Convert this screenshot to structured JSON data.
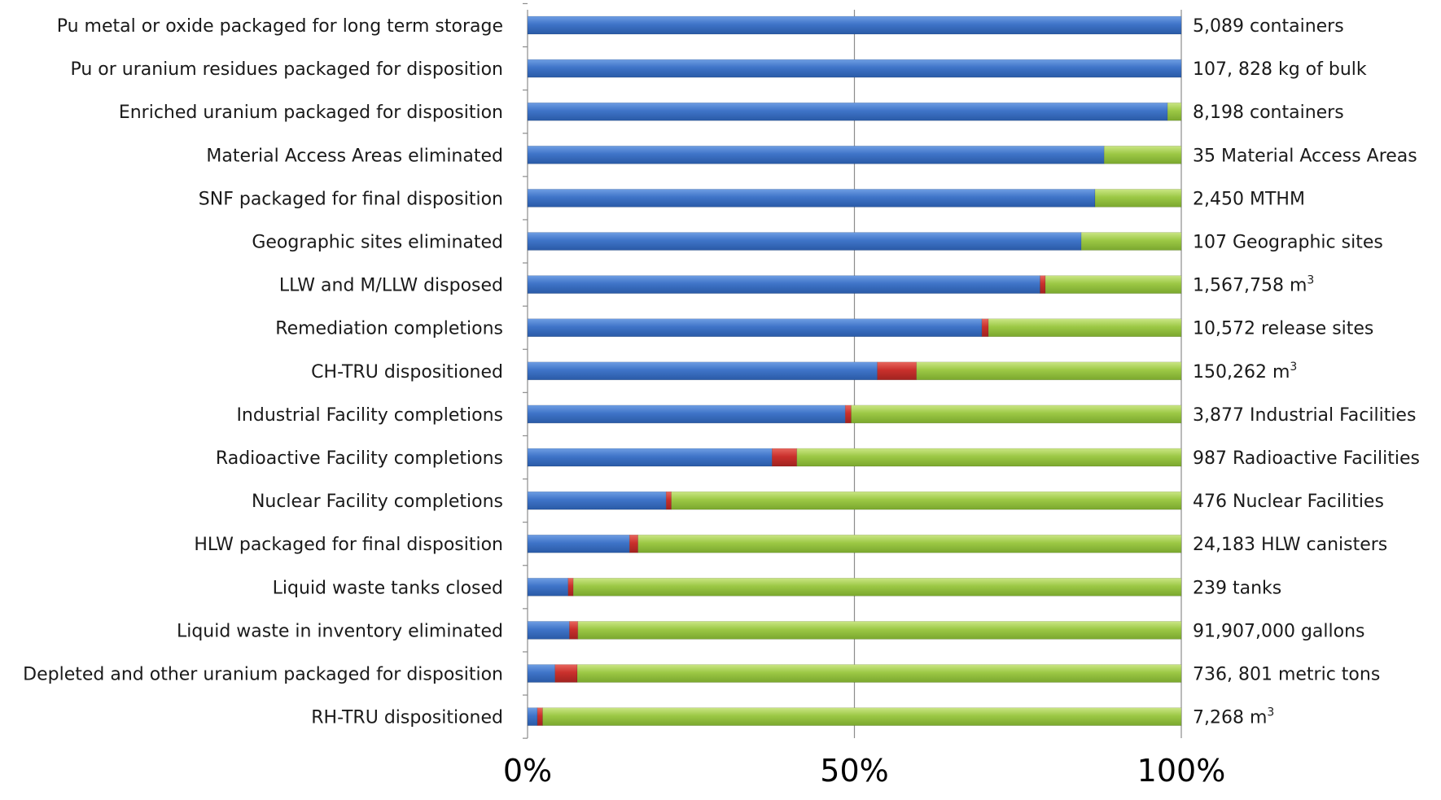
{
  "chart_data": {
    "type": "bar",
    "orientation": "horizontal",
    "stacked": true,
    "percent_scale": true,
    "xlim": [
      0,
      100
    ],
    "x_ticks": [
      0,
      50,
      100
    ],
    "x_tick_labels": [
      "0%",
      "50%",
      "100%"
    ],
    "grid": "vertical",
    "legend": "none",
    "colors": [
      "#4472c4",
      "#c0392b",
      "#9bc540"
    ],
    "categories": [
      "Pu metal or oxide packaged for long term storage",
      "Pu or uranium residues packaged for disposition",
      "Enriched uranium packaged for disposition",
      "Material Access Areas eliminated",
      "SNF packaged for final disposition",
      "Geographic sites eliminated",
      "LLW and M/LLW disposed",
      "Remediation completions",
      "CH-TRU dispositioned",
      "Industrial Facility completions",
      "Radioactive Facility completions",
      "Nuclear Facility completions",
      "HLW packaged for final disposition",
      "Liquid waste tanks closed",
      "Liquid waste in inventory eliminated",
      "Depleted and other uranium packaged for disposition",
      "RH-TRU dispositioned"
    ],
    "totals": [
      {
        "text": "5,089 containers",
        "sup": ""
      },
      {
        "text": "107, 828 kg of bulk",
        "sup": ""
      },
      {
        "text": "8,198 containers",
        "sup": ""
      },
      {
        "text": "35 Material Access Areas",
        "sup": ""
      },
      {
        "text": "2,450 MTHM",
        "sup": ""
      },
      {
        "text": "107 Geographic sites",
        "sup": ""
      },
      {
        "text": "1,567,758 m",
        "sup": "3"
      },
      {
        "text": "10,572 release sites",
        "sup": ""
      },
      {
        "text": "150,262 m",
        "sup": "3"
      },
      {
        "text": "3,877 Industrial Facilities",
        "sup": ""
      },
      {
        "text": "987 Radioactive Facilities",
        "sup": ""
      },
      {
        "text": "476 Nuclear Facilities",
        "sup": ""
      },
      {
        "text": "24,183 HLW canisters",
        "sup": ""
      },
      {
        "text": "239 tanks",
        "sup": ""
      },
      {
        "text": "91,907,000 gallons",
        "sup": ""
      },
      {
        "text": "736, 801 metric tons",
        "sup": ""
      },
      {
        "text": "7,268 m",
        "sup": "3"
      }
    ],
    "series": [
      {
        "values": [
          100,
          100,
          97.9,
          88.2,
          86.8,
          84.7,
          78.4,
          69.5,
          53.5,
          48.6,
          37.4,
          21.2,
          15.6,
          6.2,
          6.4,
          4.2,
          1.5
        ]
      },
      {
        "values": [
          0,
          0,
          0,
          0,
          0,
          0,
          0.8,
          1.0,
          6.0,
          0.9,
          3.8,
          0.8,
          1.3,
          0.8,
          1.3,
          3.4,
          0.8
        ]
      },
      {
        "values": [
          0,
          0,
          2.1,
          11.8,
          13.2,
          15.3,
          20.8,
          29.5,
          40.5,
          50.5,
          58.8,
          78.0,
          83.1,
          93.0,
          92.3,
          92.4,
          97.7
        ]
      }
    ]
  }
}
